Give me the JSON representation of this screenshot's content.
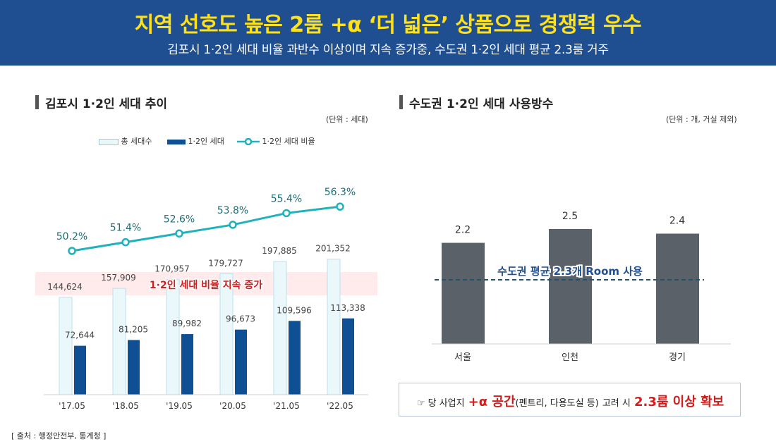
{
  "header": {
    "title": "지역 선호도 높은 2룸 +α ‘더 넓은’ 상품으로 경쟁력 우수",
    "subtitle": "김포시 1·2인 세대 비율 과반수 이상이며 지속 증가중, 수도권 1·2인 세대 평균 2.3룸 거주"
  },
  "left_panel": {
    "title": "김포시 1·2인 세대 추이",
    "unit": "(단위 : 세대)",
    "legend": [
      "총 세대수",
      "1·2인 세대",
      "1·2인 세대 비율"
    ],
    "highlight_label": "1·2인 세대 비율 지속 증가"
  },
  "right_panel": {
    "title": "수도권 1·2인 세대 사용방수",
    "unit": "(단위 : 개, 거실 제외)",
    "avg_label": "수도권 평균 2.3개 Room 사용"
  },
  "note": {
    "icon": "pointing-hand-icon",
    "part1": "☞ 당 사업지",
    "part2": "+α 공간",
    "part3": "(펜트리, 다용도실 등)",
    "part4": "고려 시",
    "part5": "2.3룸 이상 확보"
  },
  "footer": {
    "source": "[ 출처 : 행정안전부, 통계청 ]"
  },
  "chart_data": [
    {
      "type": "bar",
      "title": "김포시 1·2인 세대 추이",
      "categories": [
        "'17.05",
        "'18.05",
        "'19.05",
        "'20.05",
        "'21.05",
        "'22.05"
      ],
      "series": [
        {
          "name": "총 세대수",
          "type": "bar",
          "color": "#eaf7fb",
          "values": [
            144624,
            157909,
            170957,
            179727,
            197885,
            201352
          ],
          "labels": [
            "144,624",
            "157,909",
            "170,957",
            "179,727",
            "197,885",
            "201,352"
          ]
        },
        {
          "name": "1·2인 세대",
          "type": "bar",
          "color": "#0f4f94",
          "values": [
            72644,
            81205,
            89982,
            96673,
            109596,
            113338
          ],
          "labels": [
            "72,644",
            "81,205",
            "89,982",
            "96,673",
            "109,596",
            "113,338"
          ]
        },
        {
          "name": "1·2인 세대 비율",
          "type": "line",
          "color": "#1fb2bd",
          "values": [
            50.2,
            51.4,
            52.6,
            53.8,
            55.4,
            56.3
          ],
          "labels": [
            "50.2%",
            "51.4%",
            "52.6%",
            "53.8%",
            "55.4%",
            "56.3%"
          ]
        }
      ],
      "ylabel": "세대",
      "legend": "top-left",
      "grid": false
    },
    {
      "type": "bar",
      "title": "수도권 1·2인 세대 사용방수",
      "categories": [
        "서울",
        "인천",
        "경기"
      ],
      "values": [
        2.2,
        2.5,
        2.4
      ],
      "labels": [
        "2.2",
        "2.5",
        "2.4"
      ],
      "color": "#5b6168",
      "reference_line": 2.3,
      "ylabel": "개",
      "grid": false
    }
  ]
}
